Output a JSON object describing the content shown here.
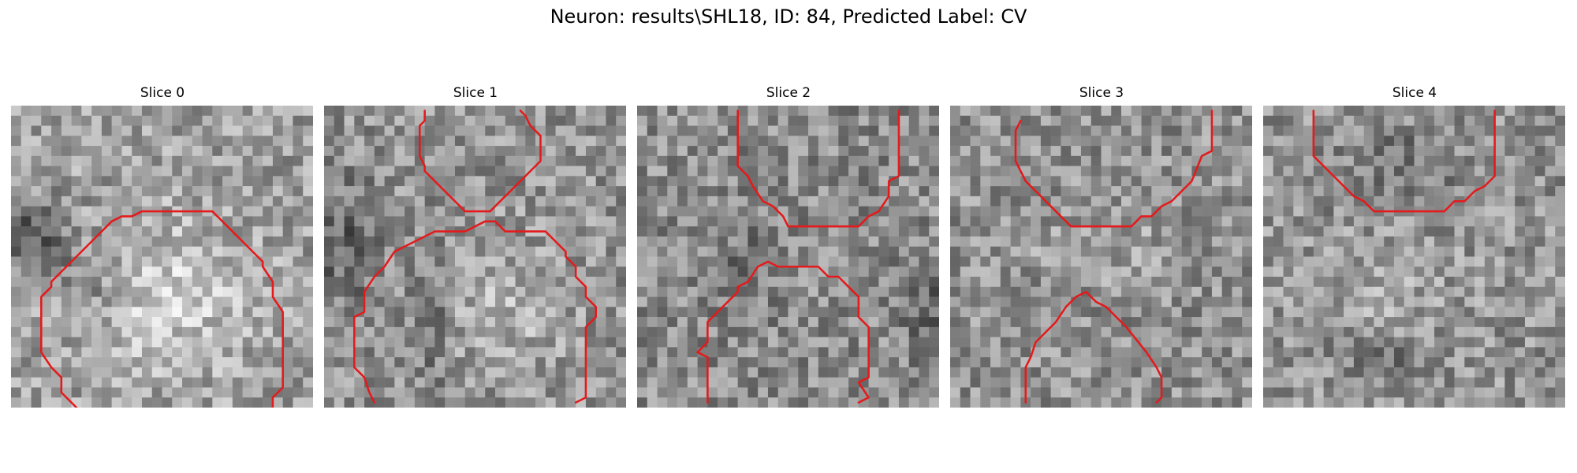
{
  "figure": {
    "title": "Neuron: results\\SHL18, ID: 84, Predicted Label: CV"
  },
  "style": {
    "contour_color": "#e41a1c"
  },
  "grid_size": 30,
  "panels": [
    {
      "label": "Slice 0",
      "image_description": "noisy grayscale patch; bright region lower-center, dark band left side",
      "contours": [
        [
          [
            6.5,
            30
          ],
          [
            5,
            28.5
          ],
          [
            5,
            27
          ],
          [
            4,
            26
          ],
          [
            3,
            24.5
          ],
          [
            3,
            19
          ],
          [
            4,
            18
          ],
          [
            4,
            17.5
          ],
          [
            5,
            16.5
          ],
          [
            6,
            15.5
          ],
          [
            7,
            14.5
          ],
          [
            8,
            13.5
          ],
          [
            9,
            12.5
          ],
          [
            10,
            11.5
          ],
          [
            11,
            11
          ],
          [
            12,
            11
          ],
          [
            13,
            10.5
          ],
          [
            20,
            10.5
          ],
          [
            21,
            11.5
          ],
          [
            22,
            12.5
          ],
          [
            23,
            13.5
          ],
          [
            24,
            14.5
          ],
          [
            25,
            15.5
          ],
          [
            25,
            16
          ],
          [
            26,
            17.5
          ],
          [
            26,
            19
          ],
          [
            27,
            20.5
          ],
          [
            27,
            28
          ],
          [
            26,
            29
          ],
          [
            26,
            30
          ]
        ]
      ]
    },
    {
      "label": "Slice 1",
      "image_description": "noisy grayscale patch; dark cross-shaped region centered",
      "contours": [
        [
          [
            10,
            0.5
          ],
          [
            10,
            1.5
          ],
          [
            9.5,
            2
          ],
          [
            9.5,
            5
          ],
          [
            10,
            6
          ],
          [
            10,
            6.5
          ],
          [
            11,
            7.5
          ],
          [
            12,
            8.5
          ],
          [
            13,
            9.5
          ],
          [
            14,
            10.5
          ],
          [
            16.5,
            10.5
          ],
          [
            17.5,
            9.5
          ],
          [
            18.5,
            8.5
          ],
          [
            19.5,
            7.5
          ],
          [
            20.5,
            6.5
          ],
          [
            21.5,
            5.5
          ],
          [
            21.5,
            3
          ],
          [
            21,
            2.5
          ],
          [
            20.5,
            2
          ],
          [
            20,
            1
          ],
          [
            19.5,
            0.5
          ]
        ],
        [
          [
            5,
            29.5
          ],
          [
            4.5,
            28.5
          ],
          [
            4,
            27
          ],
          [
            3,
            26
          ],
          [
            3,
            21
          ],
          [
            4,
            20.5
          ],
          [
            4,
            18.5
          ],
          [
            5,
            17
          ],
          [
            6,
            16
          ],
          [
            7,
            14.5
          ],
          [
            8,
            14
          ],
          [
            9,
            13.5
          ],
          [
            10,
            13
          ],
          [
            11,
            12.5
          ],
          [
            12,
            12.5
          ],
          [
            13,
            12.5
          ],
          [
            14,
            12.5
          ],
          [
            15,
            12
          ],
          [
            16,
            11.5
          ],
          [
            17,
            11.5
          ],
          [
            18,
            12.5
          ],
          [
            22,
            12.5
          ],
          [
            23,
            13.5
          ],
          [
            24,
            14.5
          ],
          [
            24,
            15
          ],
          [
            25,
            16
          ],
          [
            25,
            17
          ],
          [
            26,
            18
          ],
          [
            26,
            19
          ],
          [
            27,
            20
          ],
          [
            27,
            21
          ],
          [
            26,
            22
          ],
          [
            26,
            23
          ],
          [
            26,
            28
          ],
          [
            26,
            29
          ],
          [
            25,
            29.5
          ]
        ]
      ]
    },
    {
      "label": "Slice 2",
      "image_description": "noisy grayscale patch; dark diagonal structure center",
      "contours": [
        [
          [
            10,
            0.5
          ],
          [
            10,
            6
          ],
          [
            11,
            7
          ],
          [
            11.5,
            8
          ],
          [
            12.5,
            9.5
          ],
          [
            13.5,
            10
          ],
          [
            14.5,
            11
          ],
          [
            15,
            12
          ],
          [
            22,
            12
          ],
          [
            23,
            11
          ],
          [
            24,
            10.5
          ],
          [
            25,
            9
          ],
          [
            25,
            7.5
          ],
          [
            26,
            7
          ],
          [
            26,
            0.5
          ]
        ],
        [
          [
            7,
            29.5
          ],
          [
            7,
            25
          ],
          [
            6,
            24.5
          ],
          [
            7,
            23.5
          ],
          [
            7,
            21.5
          ],
          [
            8,
            20.5
          ],
          [
            9,
            19.5
          ],
          [
            10,
            18.5
          ],
          [
            10,
            18
          ],
          [
            11,
            17.5
          ],
          [
            12,
            16
          ],
          [
            13,
            15.5
          ],
          [
            14,
            16
          ],
          [
            15,
            16
          ],
          [
            16,
            16
          ],
          [
            17,
            16
          ],
          [
            18,
            16
          ],
          [
            19,
            17
          ],
          [
            20,
            17
          ],
          [
            21,
            18
          ],
          [
            22,
            19
          ],
          [
            22,
            21
          ],
          [
            23,
            22
          ],
          [
            23,
            27
          ],
          [
            22,
            27.5
          ],
          [
            23,
            29
          ],
          [
            22,
            29.5
          ]
        ]
      ]
    },
    {
      "label": "Slice 3",
      "image_description": "noisy grayscale patch; bright band across middle",
      "contours": [
        [
          [
            7,
            1.5
          ],
          [
            6.5,
            2.5
          ],
          [
            6.5,
            5.5
          ],
          [
            7.5,
            7.5
          ],
          [
            8,
            8
          ],
          [
            9,
            9
          ],
          [
            10,
            10
          ],
          [
            11,
            11
          ],
          [
            12,
            12
          ],
          [
            18,
            12
          ],
          [
            19,
            11
          ],
          [
            20,
            11
          ],
          [
            21,
            10
          ],
          [
            22,
            9.5
          ],
          [
            23,
            8.5
          ],
          [
            24,
            7.5
          ],
          [
            25,
            5
          ],
          [
            26,
            4.5
          ],
          [
            26,
            0.5
          ]
        ],
        [
          [
            7.5,
            29.5
          ],
          [
            7.5,
            26
          ],
          [
            8,
            25
          ],
          [
            8.5,
            23.5
          ],
          [
            9.5,
            22.5
          ],
          [
            10.5,
            21.5
          ],
          [
            11.5,
            20
          ],
          [
            12.5,
            19
          ],
          [
            13.5,
            18.5
          ],
          [
            14.5,
            19.5
          ],
          [
            15.5,
            20
          ],
          [
            16.5,
            21
          ],
          [
            17.5,
            22
          ],
          [
            19.5,
            24.5
          ],
          [
            20.5,
            26
          ],
          [
            21,
            27
          ],
          [
            21,
            29
          ],
          [
            20.5,
            29.5
          ]
        ]
      ]
    },
    {
      "label": "Slice 4",
      "image_description": "noisy grayscale patch; darker upper region",
      "contours": [
        [
          [
            5,
            0.5
          ],
          [
            5,
            5
          ],
          [
            6,
            6
          ],
          [
            7,
            7
          ],
          [
            8,
            8
          ],
          [
            9,
            9
          ],
          [
            10,
            9.5
          ],
          [
            11,
            10.5
          ],
          [
            18,
            10.5
          ],
          [
            19,
            9.5
          ],
          [
            20,
            9.5
          ],
          [
            21,
            8.5
          ],
          [
            22,
            8
          ],
          [
            23,
            7
          ],
          [
            23,
            0.5
          ]
        ]
      ]
    }
  ]
}
